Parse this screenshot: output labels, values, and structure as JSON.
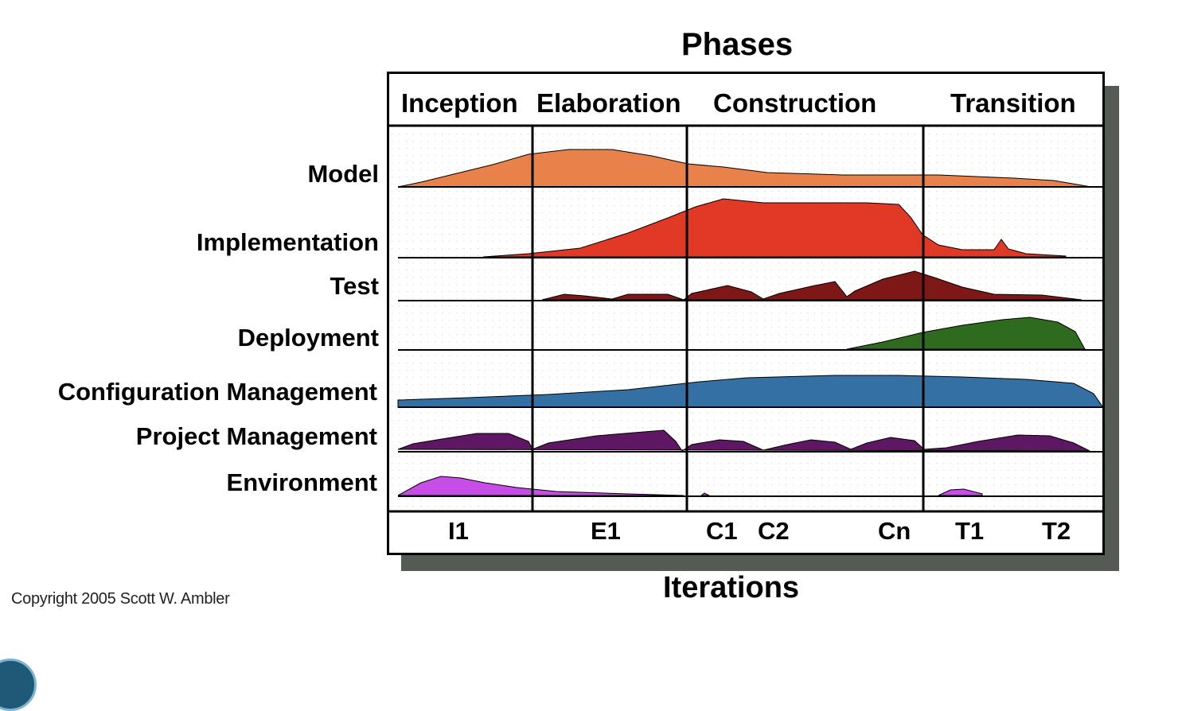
{
  "title": "Phases",
  "footer_title": "Iterations",
  "copyright": "Copyright 2005 Scott W. Ambler",
  "phases": [
    "Inception",
    "Elaboration",
    "Construction",
    "Transition"
  ],
  "iterations": [
    "I1",
    "E1",
    "C1",
    "C2",
    "Cn",
    "T1",
    "T2"
  ],
  "disciplines": [
    {
      "name": "Model",
      "color": "#e8814a"
    },
    {
      "name": "Implementation",
      "color": "#e03a26"
    },
    {
      "name": "Test",
      "color": "#7e1816"
    },
    {
      "name": "Deployment",
      "color": "#2e6b1e"
    },
    {
      "name": "Configuration Management",
      "color": "#3470a3"
    },
    {
      "name": "Project Management",
      "color": "#5e1762"
    },
    {
      "name": "Environment",
      "color": "#c64ee6"
    }
  ]
}
